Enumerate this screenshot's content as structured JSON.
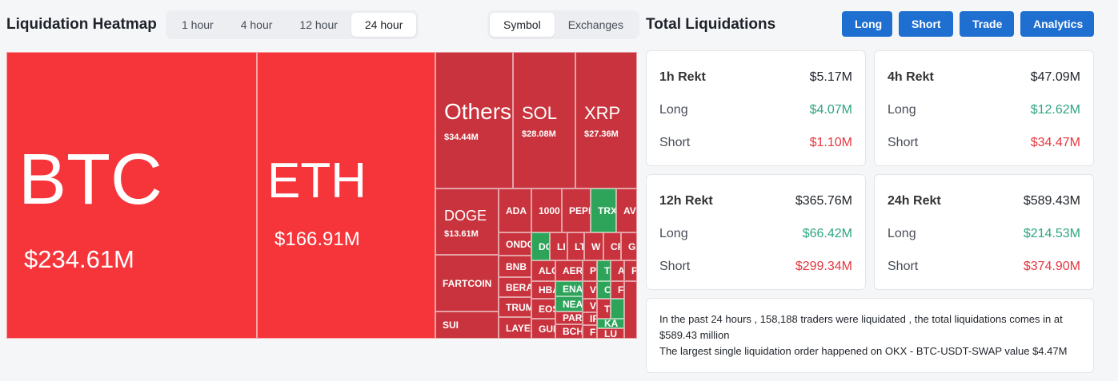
{
  "heatmap": {
    "title": "Liquidation Heatmap",
    "time_options": [
      "1 hour",
      "4 hour",
      "12 hour",
      "24 hour"
    ],
    "active_time": "24 hour",
    "view_options": [
      "Symbol",
      "Exchanges"
    ],
    "active_view": "Symbol",
    "tiles": {
      "btc": {
        "symbol": "BTC",
        "value": "$234.61M"
      },
      "eth": {
        "symbol": "ETH",
        "value": "$166.91M"
      },
      "others": {
        "symbol": "Others",
        "value": "$34.44M"
      },
      "sol": {
        "symbol": "SOL",
        "value": "$28.08M"
      },
      "xrp": {
        "symbol": "XRP",
        "value": "$27.36M"
      },
      "doge": {
        "symbol": "DOGE",
        "value": "$13.61M"
      },
      "fartcoin": {
        "symbol": "FARTCOIN"
      },
      "sui": {
        "symbol": "SUI"
      },
      "ada": {
        "symbol": "ADA"
      },
      "k1000": {
        "symbol": "1000"
      },
      "pepe": {
        "symbol": "PEPE"
      },
      "trx": {
        "symbol": "TRX"
      },
      "av": {
        "symbol": "AV"
      },
      "ondo": {
        "symbol": "ONDO"
      },
      "dc": {
        "symbol": "DC"
      },
      "li": {
        "symbol": "LI"
      },
      "lt": {
        "symbol": "LT"
      },
      "w": {
        "symbol": "W"
      },
      "cr": {
        "symbol": "CR"
      },
      "ga": {
        "symbol": "GA"
      },
      "bnb": {
        "symbol": "BNB"
      },
      "alc": {
        "symbol": "ALC"
      },
      "aer": {
        "symbol": "AER"
      },
      "p": {
        "symbol": "P"
      },
      "t": {
        "symbol": "T"
      },
      "a": {
        "symbol": "A"
      },
      "p2": {
        "symbol": "P"
      },
      "bera": {
        "symbol": "BERA"
      },
      "hba": {
        "symbol": "HBA"
      },
      "ena": {
        "symbol": "ENA"
      },
      "v": {
        "symbol": "V"
      },
      "c": {
        "symbol": "C"
      },
      "f": {
        "symbol": "F"
      },
      "trum": {
        "symbol": "TRUM"
      },
      "eos": {
        "symbol": "EOS"
      },
      "nea": {
        "symbol": "NEA"
      },
      "vi": {
        "symbol": "VI"
      },
      "t2": {
        "symbol": "T"
      },
      "laye": {
        "symbol": "LAYE"
      },
      "gun": {
        "symbol": "GUN"
      },
      "par": {
        "symbol": "PAR"
      },
      "ip": {
        "symbol": "IP"
      },
      "ka": {
        "symbol": "KA"
      },
      "bch": {
        "symbol": "BCH"
      },
      "fu": {
        "symbol": "FU"
      },
      "lu": {
        "symbol": "LU"
      }
    }
  },
  "totals": {
    "title": "Total Liquidations",
    "buttons": [
      "Long",
      "Short",
      "Trade",
      "Analytics"
    ],
    "cards": [
      {
        "label": "1h Rekt",
        "total": "$5.17M",
        "long_label": "Long",
        "long": "$4.07M",
        "short_label": "Short",
        "short": "$1.10M"
      },
      {
        "label": "4h Rekt",
        "total": "$47.09M",
        "long_label": "Long",
        "long": "$12.62M",
        "short_label": "Short",
        "short": "$34.47M"
      },
      {
        "label": "12h Rekt",
        "total": "$365.76M",
        "long_label": "Long",
        "long": "$66.42M",
        "short_label": "Short",
        "short": "$299.34M"
      },
      {
        "label": "24h Rekt",
        "total": "$589.43M",
        "long_label": "Long",
        "long": "$214.53M",
        "short_label": "Short",
        "short": "$374.90M"
      }
    ],
    "summary_line1": "In the past 24 hours , 158,188 traders were liquidated , the total liquidations comes in at $589.43 million",
    "summary_line2": "The largest single liquidation order happened on OKX - BTC-USDT-SWAP value $4.47M"
  },
  "colors": {
    "accent": "#1f6fd1",
    "liq_big": "#f6353b",
    "liq_mid": "#c8333d",
    "liq_green": "#2da45a",
    "long_text": "#2ea583",
    "short_text": "#e5373f"
  }
}
